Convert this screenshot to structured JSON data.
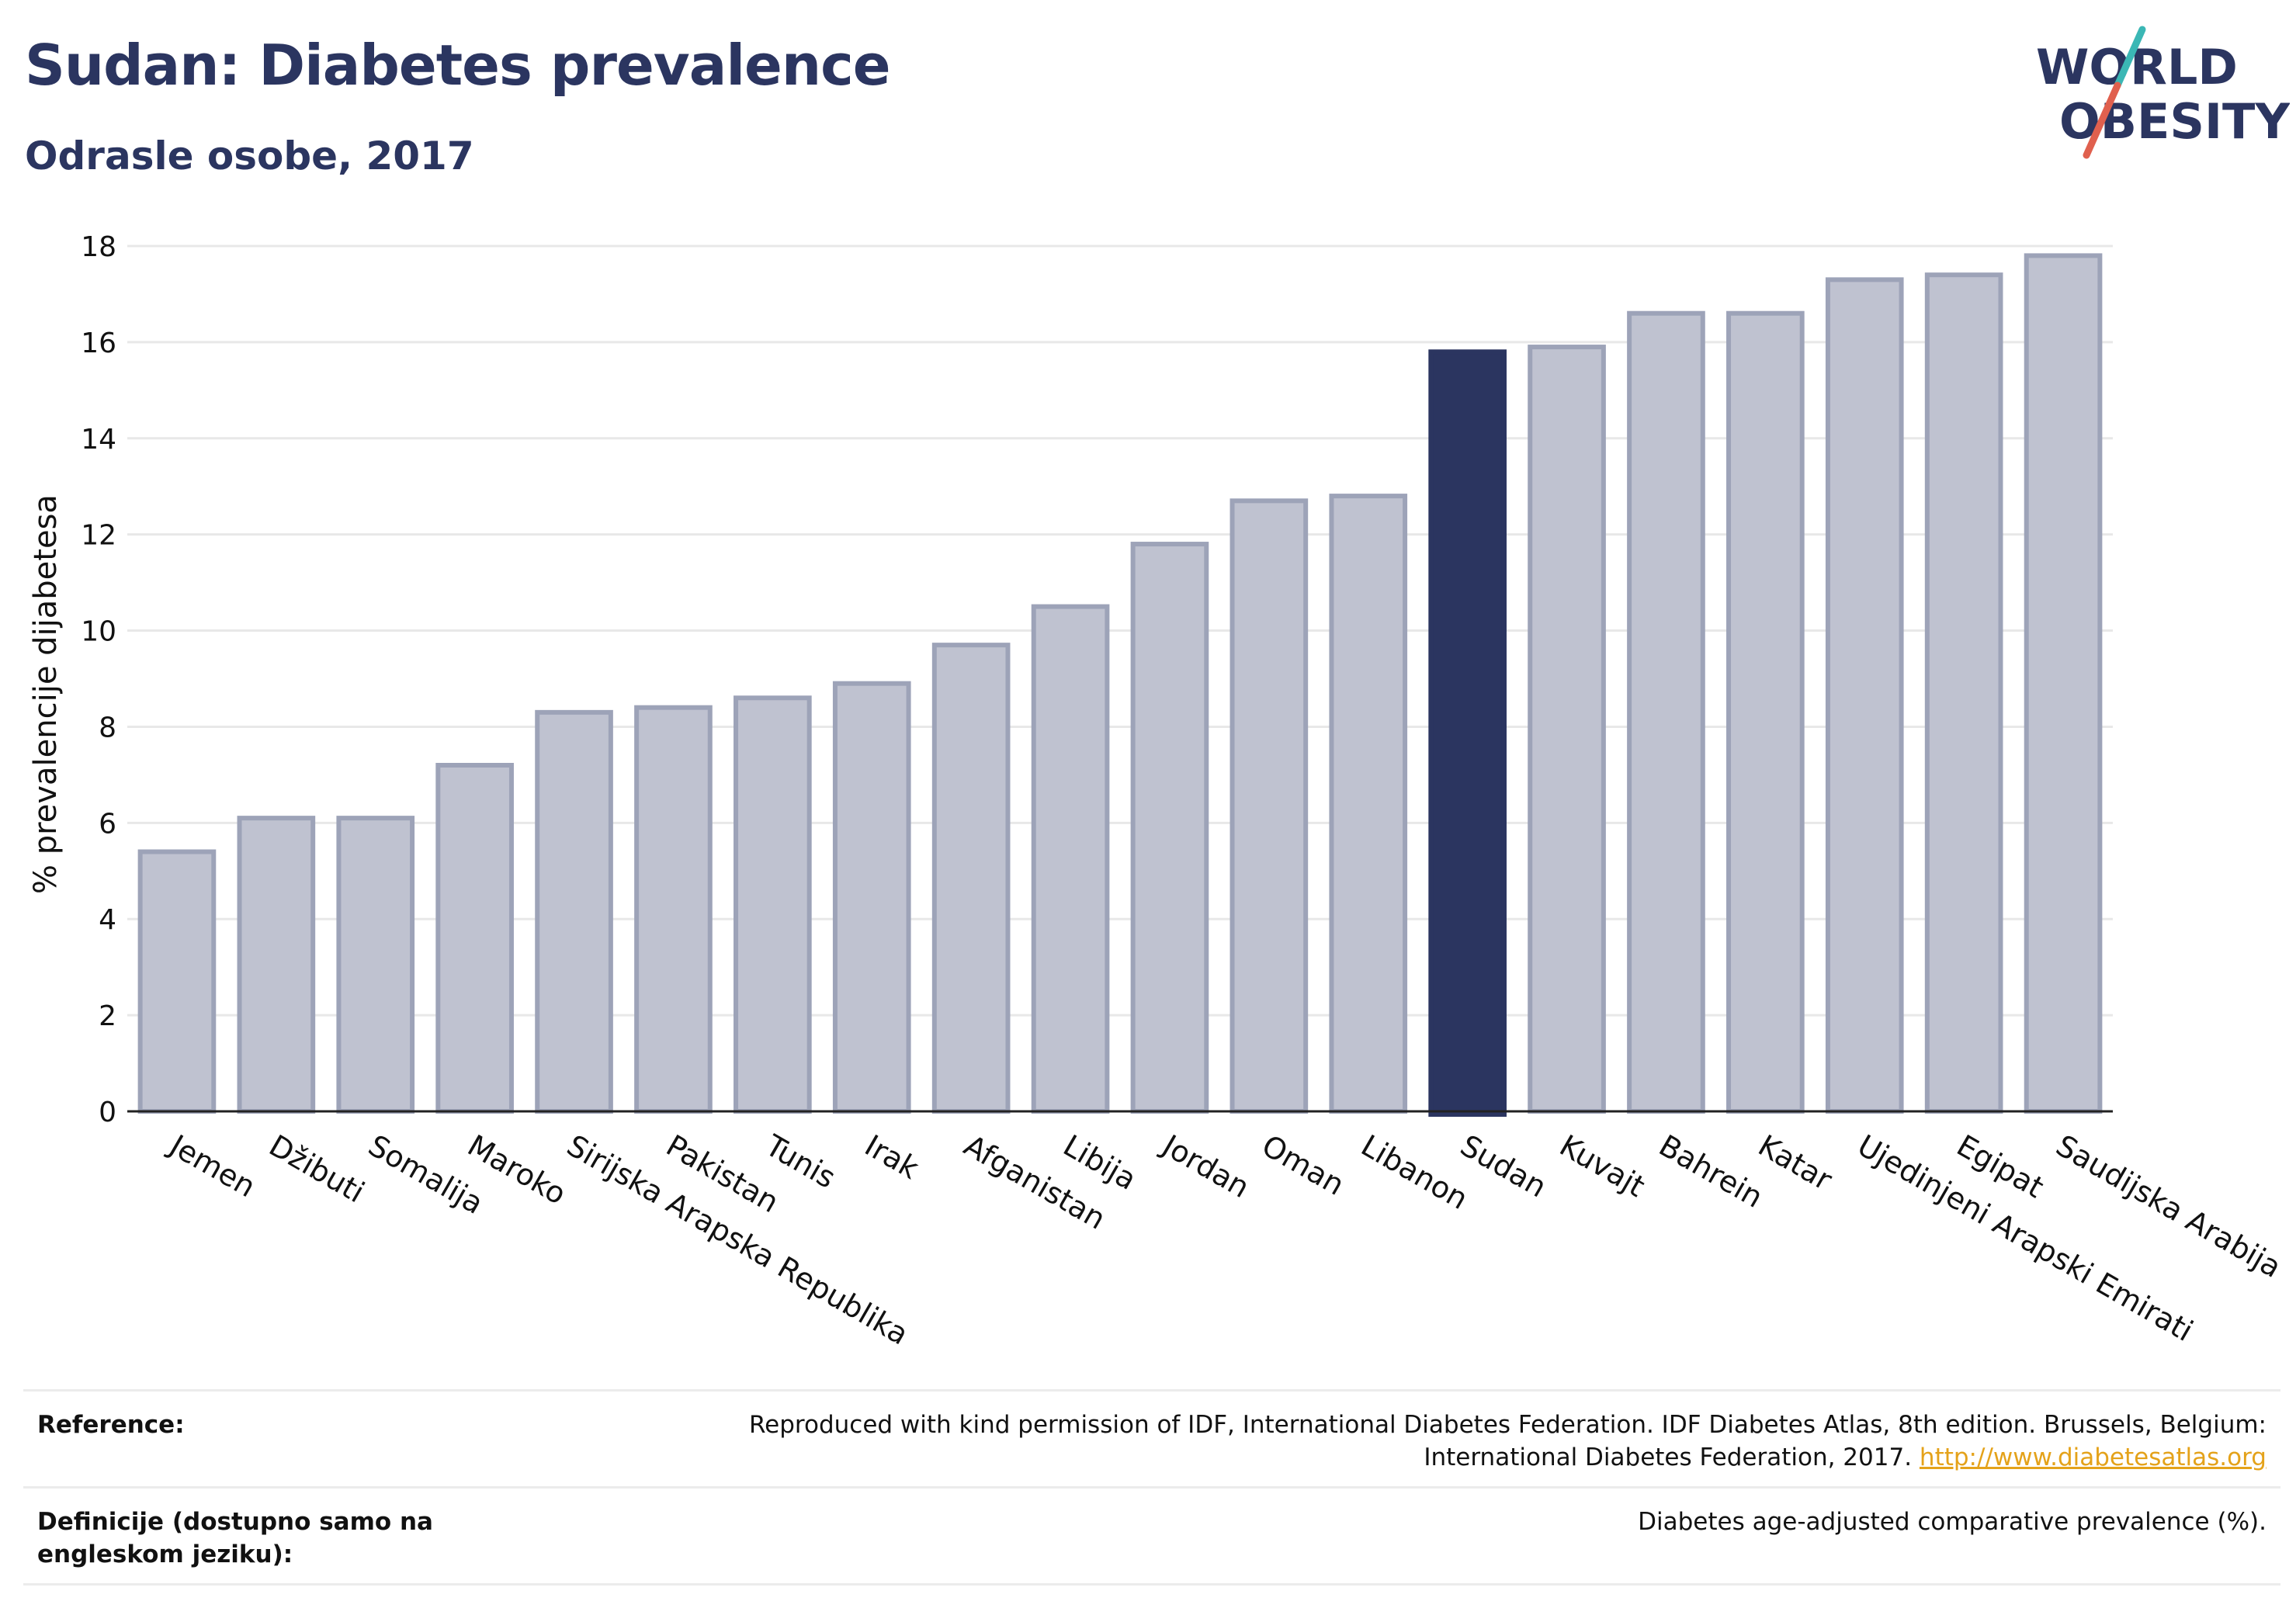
{
  "header": {
    "title": "Sudan: Diabetes prevalence",
    "subtitle": "Odrasle osobe, 2017"
  },
  "logo": {
    "line1": "WORLD",
    "line2": "OBESITY",
    "colors": {
      "text": "#2b3560",
      "slash_teal": "#3bb7b5",
      "slash_red": "#e0604e"
    }
  },
  "colors": {
    "highlight_bar": "#2b3560",
    "other_bar_fill": "#bfc2d0",
    "other_bar_stroke": "#9da3b8",
    "grid": "#e8e8e8",
    "axis": "#222222",
    "link": "#e4a21a"
  },
  "chart_data": {
    "type": "bar",
    "ylabel": "% prevalencije dijabetesa",
    "ylim": [
      0,
      18
    ],
    "yticks": [
      0,
      2,
      4,
      6,
      8,
      10,
      12,
      14,
      16,
      18
    ],
    "grid": true,
    "highlight": "Sudan",
    "categories": [
      "Jemen",
      "Džibuti",
      "Somalija",
      "Maroko",
      "Sirijska Arapska Republika",
      "Pakistan",
      "Tunis",
      "Irak",
      "Afganistan",
      "Libija",
      "Jordan",
      "Oman",
      "Libanon",
      "Sudan",
      "Kuvajt",
      "Bahrein",
      "Katar",
      "Ujedinjeni Arapski Emirati",
      "Egipat",
      "Saudijska Arabija"
    ],
    "values": [
      5.4,
      6.1,
      6.1,
      7.2,
      8.3,
      8.4,
      8.6,
      8.9,
      9.7,
      10.5,
      11.8,
      12.7,
      12.8,
      15.8,
      15.9,
      16.6,
      16.6,
      17.3,
      17.4,
      17.8
    ]
  },
  "footer": {
    "reference_label": "Reference:",
    "reference_text": "Reproduced with kind permission of IDF, International Diabetes Federation. IDF Diabetes Atlas, 8th edition. Brussels, Belgium: International Diabetes Federation, 2017.",
    "reference_link": "http://www.diabetesatlas.org",
    "definition_label": "Definicije (dostupno samo na engleskom jeziku):",
    "definition_text": "Diabetes age-adjusted comparative prevalence (%)."
  }
}
